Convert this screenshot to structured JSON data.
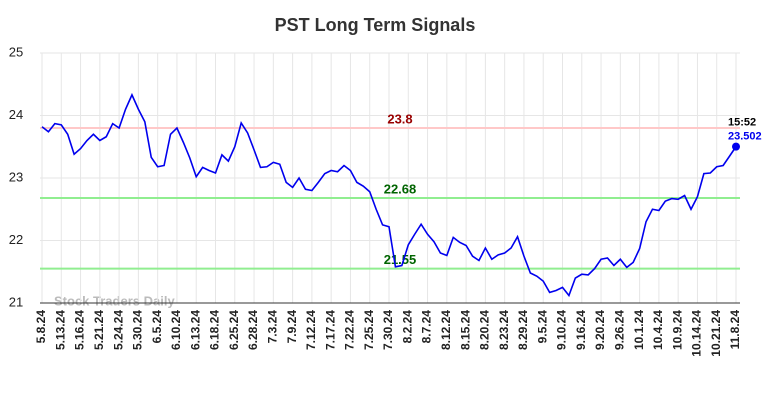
{
  "chart_data": {
    "type": "line",
    "title": "PST Long Term Signals",
    "watermark": "Stock Traders Daily",
    "time_label": "15:52",
    "categories": [
      "5.8.24",
      null,
      null,
      "5.13.24",
      null,
      null,
      "5.16.24",
      null,
      null,
      "5.21.24",
      null,
      null,
      "5.24.24",
      null,
      null,
      "5.30.24",
      null,
      null,
      "6.5.24",
      null,
      null,
      "6.10.24",
      null,
      null,
      "6.13.24",
      null,
      null,
      "6.18.24",
      null,
      null,
      "6.25.24",
      null,
      null,
      "6.28.24",
      null,
      null,
      "7.3.24",
      null,
      null,
      "7.9.24",
      null,
      null,
      "7.12.24",
      null,
      null,
      "7.17.24",
      null,
      null,
      "7.22.24",
      null,
      null,
      "7.25.24",
      null,
      null,
      "7.30.24",
      null,
      null,
      "8.2.24",
      null,
      null,
      "8.7.24",
      null,
      null,
      "8.12.24",
      null,
      null,
      "8.15.24",
      null,
      null,
      "8.20.24",
      null,
      null,
      "8.23.24",
      null,
      null,
      "8.29.24",
      null,
      null,
      "9.5.24",
      null,
      null,
      "9.10.24",
      null,
      null,
      "9.16.24",
      null,
      null,
      "9.20.24",
      null,
      null,
      "9.26.24",
      null,
      null,
      "10.1.24",
      null,
      null,
      "10.4.24",
      null,
      null,
      "10.9.24",
      null,
      null,
      "10.14.24",
      null,
      null,
      "10.21.24",
      null,
      null,
      "11.8.24"
    ],
    "series": [
      {
        "color": "#0000ee",
        "values": [
          23.82,
          23.74,
          23.87,
          23.85,
          23.7,
          23.38,
          23.47,
          23.6,
          23.7,
          23.6,
          23.66,
          23.87,
          23.8,
          24.1,
          24.33,
          24.1,
          23.9,
          23.33,
          23.18,
          23.2,
          23.7,
          23.8,
          23.57,
          23.32,
          23.02,
          23.17,
          23.12,
          23.08,
          23.37,
          23.27,
          23.5,
          23.88,
          23.72,
          23.45,
          23.17,
          23.18,
          23.25,
          23.22,
          22.93,
          22.85,
          23.0,
          22.82,
          22.8,
          22.93,
          23.07,
          23.12,
          23.1,
          23.2,
          23.12,
          22.93,
          22.87,
          22.78,
          22.5,
          22.25,
          22.22,
          21.58,
          21.6,
          21.93,
          22.1,
          22.26,
          22.1,
          21.98,
          21.8,
          21.76,
          22.05,
          21.97,
          21.92,
          21.75,
          21.68,
          21.88,
          21.7,
          21.77,
          21.8,
          21.88,
          22.06,
          21.75,
          21.48,
          21.43,
          21.35,
          21.17,
          21.2,
          21.25,
          21.12,
          21.4,
          21.46,
          21.45,
          21.55,
          21.7,
          21.72,
          21.6,
          21.7,
          21.57,
          21.65,
          21.87,
          22.3,
          22.5,
          22.48,
          22.63,
          22.67,
          22.66,
          22.72,
          22.5,
          22.7,
          23.07,
          23.08,
          23.18,
          23.2,
          23.35,
          23.502
        ]
      }
    ],
    "reference_lines": [
      {
        "value": 23.8,
        "color": "#ffc8c8",
        "label_color": "#990000"
      },
      {
        "value": 22.68,
        "color": "#90ee90",
        "label_color": "#006400"
      },
      {
        "value": 21.55,
        "color": "#90ee90",
        "label_color": "#006400"
      }
    ],
    "ylim": [
      21,
      25
    ],
    "yticks": [
      21,
      22,
      23,
      24,
      25
    ],
    "grid": true
  }
}
